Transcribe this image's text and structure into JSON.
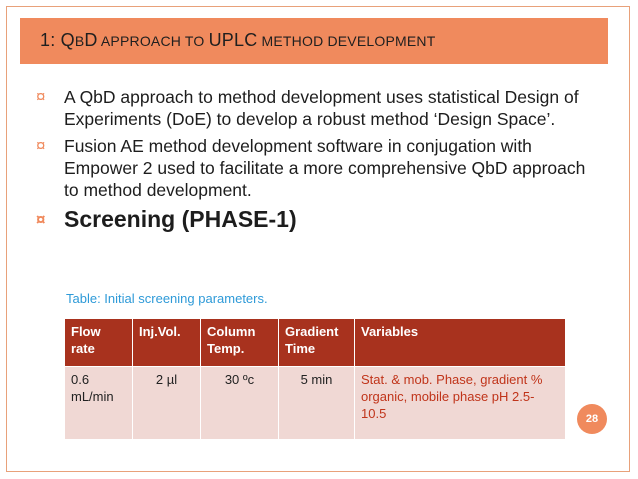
{
  "slide": {
    "title_number": "1:",
    "title_parts": [
      {
        "big": "Q",
        "small": "B"
      },
      {
        "big": "D",
        "small": " APPROACH TO "
      },
      {
        "big": "UPLC",
        "small": " METHOD DEVELOPMENT"
      }
    ],
    "title_text": "1: QBD APPROACH TO UPLC METHOD DEVELOPMENT",
    "bullet_mark": "¤",
    "bullets": [
      "A QbD approach to method development uses statistical Design of Experiments (DoE) to develop a robust method ‘Design Space’.",
      "Fusion AE method development  software in conjugation with Empower 2 used to facilitate a more comprehensive QbD approach to method development.",
      "Screening  (PHASE-1)"
    ],
    "caption": "Table: Initial screening parameters.",
    "table": {
      "headers": [
        "Flow rate",
        "Inj.Vol.",
        "Column Temp.",
        "Gradient Time",
        "Variables"
      ],
      "rows": [
        [
          "0.6 mL/min",
          "2 µl",
          "30 ºc",
          "5 min",
          "Stat.  & mob. Phase, gradient % organic, mobile phase pH 2.5-10.5"
        ]
      ]
    },
    "page_number": "28",
    "colors": {
      "accent": "#f08a5d",
      "table_header": "#a8321e",
      "table_body": "#f0d8d4",
      "caption": "#2e9ad8",
      "variables_text": "#c0341a"
    }
  }
}
